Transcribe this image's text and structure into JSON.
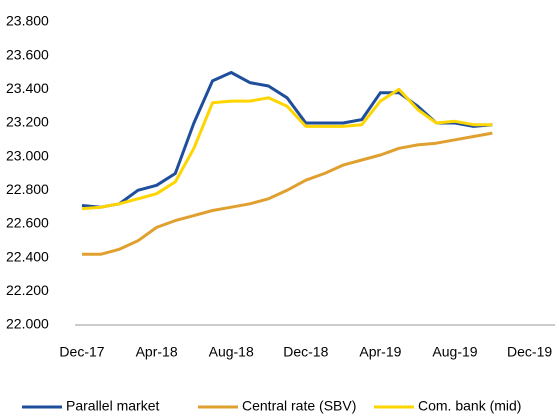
{
  "chart_data": {
    "type": "line",
    "categories": [
      "Dec-17",
      null,
      null,
      null,
      "Apr-18",
      null,
      null,
      null,
      "Aug-18",
      null,
      null,
      null,
      "Dec-18",
      null,
      null,
      null,
      "Apr-19",
      null,
      null,
      null,
      "Aug-19",
      null,
      null,
      null,
      "Dec-19"
    ],
    "series": [
      {
        "name": "Parallel market",
        "color": "#1f4e9c",
        "values": [
          22710,
          22700,
          22720,
          22800,
          22830,
          22900,
          23200,
          23450,
          23500,
          23440,
          23420,
          23350,
          23200,
          23200,
          23200,
          23220,
          23380,
          23380,
          23300,
          23200,
          23200,
          23180,
          23190,
          null,
          null
        ]
      },
      {
        "name": "Central rate (SBV)",
        "color": "#e0a030",
        "values": [
          22420,
          22420,
          22450,
          22500,
          22580,
          22620,
          22650,
          22680,
          22700,
          22720,
          22750,
          22800,
          22860,
          22900,
          22950,
          22980,
          23010,
          23050,
          23070,
          23080,
          23100,
          23120,
          23140,
          null,
          null
        ]
      },
      {
        "name": "Com. bank (mid)",
        "color": "#ffd500",
        "values": [
          22690,
          22700,
          22720,
          22750,
          22780,
          22850,
          23050,
          23320,
          23330,
          23330,
          23350,
          23300,
          23180,
          23180,
          23180,
          23190,
          23330,
          23400,
          23280,
          23200,
          23210,
          23190,
          23190,
          null,
          null
        ]
      }
    ],
    "ylim": [
      22000,
      23800
    ],
    "yticks": [
      {
        "value": 22000,
        "label": "22.000"
      },
      {
        "value": 22200,
        "label": "22.200"
      },
      {
        "value": 22400,
        "label": "22.400"
      },
      {
        "value": 22600,
        "label": "22.600"
      },
      {
        "value": 22800,
        "label": "22.800"
      },
      {
        "value": 23000,
        "label": "23.000"
      },
      {
        "value": 23200,
        "label": "23.200"
      },
      {
        "value": 23400,
        "label": "23.400"
      },
      {
        "value": 23600,
        "label": "23.600"
      },
      {
        "value": 23800,
        "label": "23.800"
      }
    ],
    "legend": "bottom",
    "grid": false
  }
}
